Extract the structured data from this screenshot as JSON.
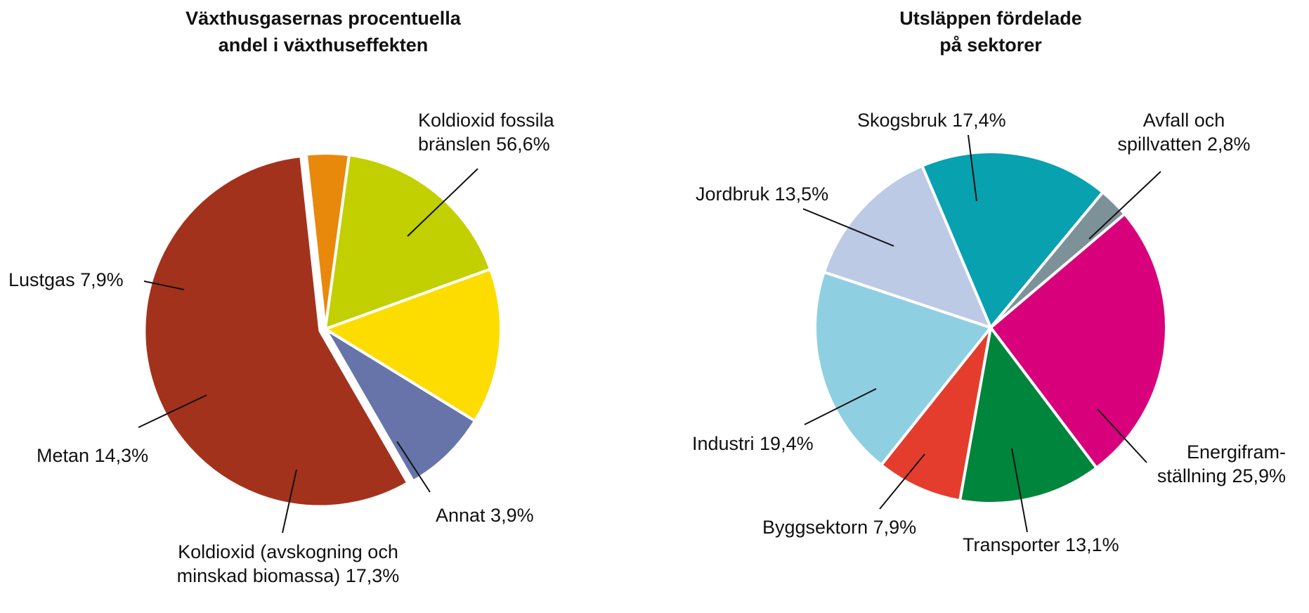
{
  "chart_data": [
    {
      "type": "pie",
      "title_lines": [
        "Växthusgasernas procentuella",
        "andel i växthuseffekten"
      ],
      "slices": [
        {
          "label_lines": [
            "Koldioxid fossila",
            "bränslen 56,6%"
          ],
          "value": 56.6,
          "color": "#a3321c"
        },
        {
          "label_lines": [
            "Annat 3,9%"
          ],
          "value": 3.9,
          "color": "#e8890c"
        },
        {
          "label_lines": [
            "Koldioxid (avskogning och",
            "minskad biomassa) 17,3%"
          ],
          "value": 17.3,
          "color": "#c2cf00"
        },
        {
          "label_lines": [
            "Metan 14,3%"
          ],
          "value": 14.3,
          "color": "#fddc00"
        },
        {
          "label_lines": [
            "Lustgas 7,9%"
          ],
          "value": 7.9,
          "color": "#6674aa"
        }
      ]
    },
    {
      "type": "pie",
      "title_lines": [
        "Utsläppen fördelade",
        "på sektorer"
      ],
      "slices": [
        {
          "label_lines": [
            "Skogsbruk 17,4%"
          ],
          "value": 17.4,
          "color": "#07a1b0"
        },
        {
          "label_lines": [
            "Avfall och",
            "spillvatten 2,8%"
          ],
          "value": 2.8,
          "color": "#7d9298"
        },
        {
          "label_lines": [
            "Energifram-",
            "ställning 25,9%"
          ],
          "value": 25.9,
          "color": "#d9007b"
        },
        {
          "label_lines": [
            "Transporter 13,1%"
          ],
          "value": 13.1,
          "color": "#00853c"
        },
        {
          "label_lines": [
            "Byggsektorn 7,9%"
          ],
          "value": 7.9,
          "color": "#e53d2d"
        },
        {
          "label_lines": [
            "Industri 19,4%"
          ],
          "value": 19.4,
          "color": "#8fcfe2"
        },
        {
          "label_lines": [
            "Jordbruk 13,5%"
          ],
          "value": 13.5,
          "color": "#bccae6"
        }
      ]
    }
  ]
}
